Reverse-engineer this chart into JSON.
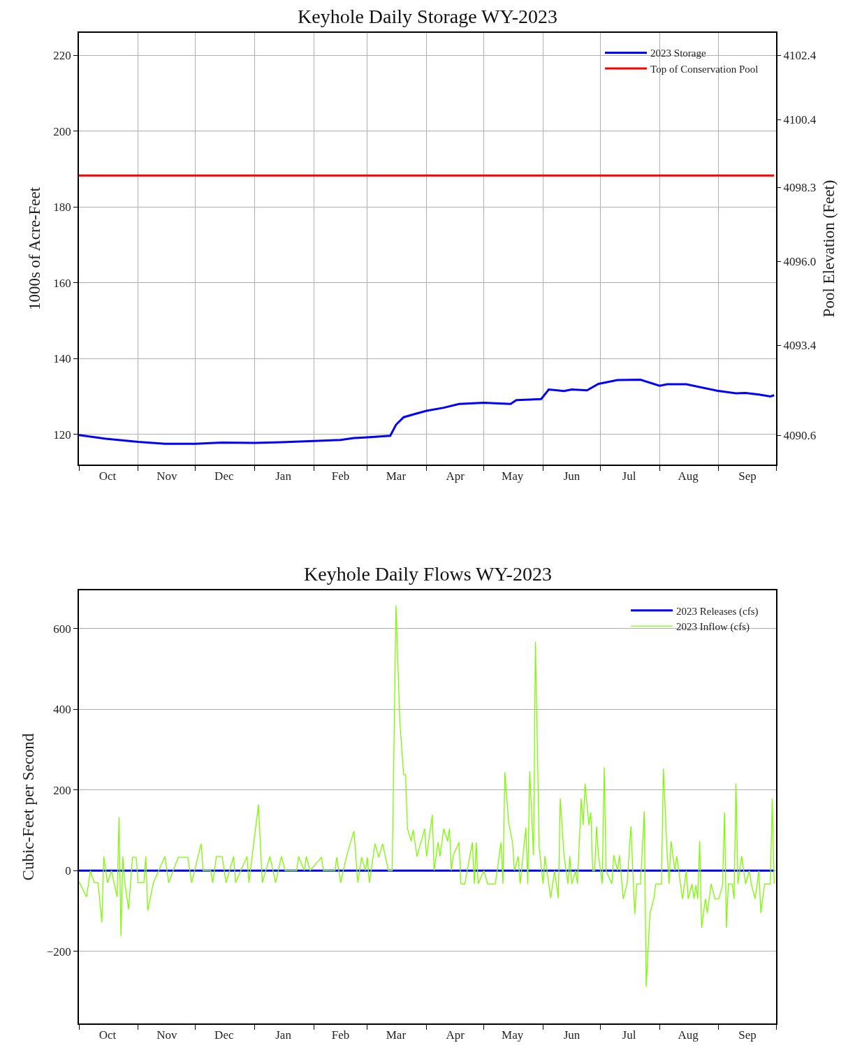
{
  "chart_data": [
    {
      "type": "line",
      "title": "Keyhole Daily Storage WY-2023",
      "ylabel": "1000s of Acre-Feet",
      "y2label": "Pool Elevation (Feet)",
      "series": [
        {
          "name": "2023 Storage",
          "color": "#0000ff",
          "x": [
            "2022-10-01",
            "2022-10-15",
            "2022-11-01",
            "2022-11-15",
            "2022-12-01",
            "2022-12-15",
            "2023-01-01",
            "2023-01-15",
            "2023-02-01",
            "2023-02-15",
            "2023-02-22",
            "2023-03-01",
            "2023-03-13",
            "2023-03-16",
            "2023-03-20",
            "2023-03-27",
            "2023-04-01",
            "2023-04-10",
            "2023-04-18",
            "2023-05-01",
            "2023-05-15",
            "2023-05-18",
            "2023-05-31",
            "2023-06-04",
            "2023-06-12",
            "2023-06-16",
            "2023-06-24",
            "2023-06-30",
            "2023-07-10",
            "2023-07-22",
            "2023-08-01",
            "2023-08-05",
            "2023-08-15",
            "2023-08-31",
            "2023-09-10",
            "2023-09-15",
            "2023-09-22",
            "2023-09-28",
            "2023-09-30"
          ],
          "values": [
            119.8,
            118.8,
            118.0,
            117.5,
            117.5,
            117.8,
            117.7,
            117.9,
            118.2,
            118.5,
            119.0,
            119.2,
            119.6,
            122.5,
            124.5,
            125.5,
            126.2,
            127.0,
            128.0,
            128.3,
            128.0,
            129.0,
            129.3,
            131.8,
            131.4,
            131.8,
            131.6,
            133.3,
            134.3,
            134.4,
            132.8,
            133.2,
            133.2,
            131.5,
            130.8,
            130.9,
            130.5,
            130.0,
            130.3
          ]
        },
        {
          "name": "Top of Conservation Pool",
          "color": "#ff0000",
          "x": [
            "2022-10-01",
            "2023-09-30"
          ],
          "values": [
            188.3,
            188.3
          ]
        }
      ],
      "xlim": [
        "2022-10-01",
        "2023-10-01"
      ],
      "xticks": [
        {
          "value": "2022-10-01",
          "label": null
        },
        {
          "value": "2022-10-16",
          "label": "Oct"
        },
        {
          "value": "2022-11-01",
          "label": null
        },
        {
          "value": "2022-11-16",
          "label": "Nov"
        },
        {
          "value": "2022-12-01",
          "label": null
        },
        {
          "value": "2022-12-16",
          "label": "Dec"
        },
        {
          "value": "2023-01-01",
          "label": null
        },
        {
          "value": "2023-01-16",
          "label": "Jan"
        },
        {
          "value": "2023-02-01",
          "label": null
        },
        {
          "value": "2023-02-15",
          "label": "Feb"
        },
        {
          "value": "2023-03-01",
          "label": null
        },
        {
          "value": "2023-03-16",
          "label": "Mar"
        },
        {
          "value": "2023-04-01",
          "label": null
        },
        {
          "value": "2023-04-16",
          "label": "Apr"
        },
        {
          "value": "2023-05-01",
          "label": null
        },
        {
          "value": "2023-05-16",
          "label": "May"
        },
        {
          "value": "2023-06-01",
          "label": null
        },
        {
          "value": "2023-06-16",
          "label": "Jun"
        },
        {
          "value": "2023-07-01",
          "label": null
        },
        {
          "value": "2023-07-16",
          "label": "Jul"
        },
        {
          "value": "2023-08-01",
          "label": null
        },
        {
          "value": "2023-08-16",
          "label": "Aug"
        },
        {
          "value": "2023-09-01",
          "label": null
        },
        {
          "value": "2023-09-16",
          "label": "Sep"
        },
        {
          "value": "2023-10-01",
          "label": null
        }
      ],
      "ylim": [
        112,
        226
      ],
      "yticks": [
        120,
        140,
        160,
        180,
        200,
        220
      ],
      "y2lim": [
        4089.7,
        4103.1
      ],
      "y2ticks": [
        4090.6,
        4093.4,
        {
          "value": 4096.0,
          "label": "4096.0"
        },
        4098.3,
        4100.4,
        4102.4
      ],
      "grid": true,
      "legend": "top right",
      "line_style": "solid",
      "marker": "none"
    },
    {
      "type": "line",
      "title": "Keyhole Daily Flows WY-2023",
      "ylabel": "Cubic-Feet per Second",
      "series": [
        {
          "name": "2023 Releases (cfs)",
          "color": "#0000ff",
          "x": [
            "2022-10-01",
            "2023-09-30"
          ],
          "values": [
            0,
            0
          ]
        },
        {
          "name": "2023 Inflow (cfs)",
          "color": "#7cfc00",
          "x": [
            "2022-10-01",
            "2022-10-05",
            "2022-10-07",
            "2022-10-09",
            "2022-10-11",
            "2022-10-13",
            "2022-10-14",
            "2022-10-16",
            "2022-10-18",
            "2022-10-21",
            "2022-10-22",
            "2022-10-23",
            "2022-10-24",
            "2022-10-25",
            "2022-10-27",
            "2022-10-29",
            "2022-10-31",
            "2022-11-01",
            "2022-11-04",
            "2022-11-05",
            "2022-11-06",
            "2022-11-09",
            "2022-11-15",
            "2022-11-17",
            "2022-11-22",
            "2022-11-27",
            "2022-11-29",
            "2022-12-04",
            "2022-12-05",
            "2022-12-09",
            "2022-12-10",
            "2022-12-12",
            "2022-12-15",
            "2022-12-17",
            "2022-12-21",
            "2022-12-22",
            "2022-12-28",
            "2022-12-29",
            "2023-01-03",
            "2023-01-05",
            "2023-01-09",
            "2023-01-12",
            "2023-01-15",
            "2023-01-17",
            "2023-01-23",
            "2023-01-24",
            "2023-01-27",
            "2023-01-28",
            "2023-01-30",
            "2023-02-05",
            "2023-02-06",
            "2023-02-12",
            "2023-02-13",
            "2023-02-15",
            "2023-02-18",
            "2023-02-20",
            "2023-02-22",
            "2023-02-24",
            "2023-02-26",
            "2023-02-28",
            "2023-03-01",
            "2023-03-02",
            "2023-03-04",
            "2023-03-05",
            "2023-03-07",
            "2023-03-09",
            "2023-03-12",
            "2023-03-14",
            "2023-03-16",
            "2023-03-18",
            "2023-03-20",
            "2023-03-21",
            "2023-03-22",
            "2023-03-24",
            "2023-03-25",
            "2023-03-27",
            "2023-03-29",
            "2023-03-31",
            "2023-04-01",
            "2023-04-04",
            "2023-04-05",
            "2023-04-07",
            "2023-04-08",
            "2023-04-10",
            "2023-04-12",
            "2023-04-13",
            "2023-04-14",
            "2023-04-15",
            "2023-04-18",
            "2023-04-19",
            "2023-04-21",
            "2023-04-25",
            "2023-04-26",
            "2023-04-27",
            "2023-04-28",
            "2023-05-01",
            "2023-05-03",
            "2023-05-07",
            "2023-05-10",
            "2023-05-11",
            "2023-05-12",
            "2023-05-14",
            "2023-05-16",
            "2023-05-17",
            "2023-05-19",
            "2023-05-20",
            "2023-05-23",
            "2023-05-24",
            "2023-05-25",
            "2023-05-27",
            "2023-05-28",
            "2023-05-30",
            "2023-06-01",
            "2023-06-02",
            "2023-06-05",
            "2023-06-07",
            "2023-06-09",
            "2023-06-10",
            "2023-06-12",
            "2023-06-14",
            "2023-06-15",
            "2023-06-16",
            "2023-06-18",
            "2023-06-19",
            "2023-06-21",
            "2023-06-22",
            "2023-06-23",
            "2023-06-25",
            "2023-06-26",
            "2023-06-27",
            "2023-06-28",
            "2023-06-29",
            "2023-06-30",
            "2023-07-02",
            "2023-07-03",
            "2023-07-04",
            "2023-07-07",
            "2023-07-08",
            "2023-07-10",
            "2023-07-11",
            "2023-07-13",
            "2023-07-15",
            "2023-07-17",
            "2023-07-19",
            "2023-07-20",
            "2023-07-22",
            "2023-07-24",
            "2023-07-25",
            "2023-07-27",
            "2023-07-29",
            "2023-07-30",
            "2023-08-02",
            "2023-08-03",
            "2023-08-05",
            "2023-08-06",
            "2023-08-07",
            "2023-08-09",
            "2023-08-10",
            "2023-08-13",
            "2023-08-15",
            "2023-08-16",
            "2023-08-18",
            "2023-08-19",
            "2023-08-20",
            "2023-08-21",
            "2023-08-22",
            "2023-08-23",
            "2023-08-25",
            "2023-08-26",
            "2023-08-28",
            "2023-08-30",
            "2023-09-01",
            "2023-09-03",
            "2023-09-04",
            "2023-09-05",
            "2023-09-06",
            "2023-09-08",
            "2023-09-09",
            "2023-09-10",
            "2023-09-11",
            "2023-09-13",
            "2023-09-15",
            "2023-09-17",
            "2023-09-18",
            "2023-09-20",
            "2023-09-22",
            "2023-09-23",
            "2023-09-25",
            "2023-09-28",
            "2023-09-29",
            "2023-09-30"
          ],
          "values": [
            -27,
            -65,
            0,
            -30,
            -30,
            -128,
            35,
            -30,
            0,
            -65,
            133,
            -162,
            35,
            -30,
            -96,
            33,
            33,
            -30,
            -30,
            35,
            -99,
            -30,
            35,
            -30,
            33,
            33,
            -30,
            67,
            0,
            0,
            -30,
            35,
            35,
            -30,
            35,
            -30,
            35,
            -30,
            164,
            -30,
            35,
            -30,
            35,
            0,
            0,
            35,
            0,
            35,
            0,
            33,
            0,
            0,
            33,
            -30,
            33,
            67,
            98,
            -30,
            33,
            0,
            33,
            -30,
            33,
            67,
            33,
            67,
            0,
            0,
            658,
            370,
            238,
            238,
            104,
            73,
            101,
            35,
            70,
            104,
            35,
            138,
            0,
            70,
            35,
            104,
            73,
            104,
            0,
            38,
            70,
            -33,
            -33,
            70,
            -33,
            70,
            -33,
            0,
            -33,
            -33,
            70,
            -33,
            244,
            118,
            70,
            0,
            35,
            -33,
            107,
            -33,
            247,
            38,
            567,
            56,
            -33,
            36,
            -68,
            0,
            -68,
            179,
            36,
            -33,
            36,
            -33,
            0,
            -33,
            179,
            113,
            216,
            113,
            144,
            0,
            0,
            110,
            38,
            -33,
            256,
            0,
            -33,
            38,
            0,
            38,
            -70,
            -33,
            110,
            -108,
            -33,
            -33,
            147,
            -288,
            -105,
            -70,
            -33,
            -33,
            253,
            38,
            -33,
            73,
            0,
            36,
            -70,
            0,
            -70,
            -33,
            -70,
            -36,
            -70,
            73,
            -142,
            -70,
            -105,
            -33,
            -70,
            -70,
            -36,
            144,
            -142,
            -33,
            -33,
            -70,
            216,
            -33,
            36,
            -33,
            0,
            -33,
            -70,
            0,
            -105,
            -33,
            -33,
            179,
            -33
          ]
        }
      ],
      "xlim": [
        "2022-10-01",
        "2023-10-01"
      ],
      "xticks": [
        {
          "value": "2022-10-01",
          "label": null
        },
        {
          "value": "2022-10-16",
          "label": "Oct"
        },
        {
          "value": "2022-11-01",
          "label": null
        },
        {
          "value": "2022-11-16",
          "label": "Nov"
        },
        {
          "value": "2022-12-01",
          "label": null
        },
        {
          "value": "2022-12-16",
          "label": "Dec"
        },
        {
          "value": "2023-01-01",
          "label": null
        },
        {
          "value": "2023-01-16",
          "label": "Jan"
        },
        {
          "value": "2023-02-01",
          "label": null
        },
        {
          "value": "2023-02-15",
          "label": "Feb"
        },
        {
          "value": "2023-03-01",
          "label": null
        },
        {
          "value": "2023-03-16",
          "label": "Mar"
        },
        {
          "value": "2023-04-01",
          "label": null
        },
        {
          "value": "2023-04-16",
          "label": "Apr"
        },
        {
          "value": "2023-05-01",
          "label": null
        },
        {
          "value": "2023-05-16",
          "label": "May"
        },
        {
          "value": "2023-06-01",
          "label": null
        },
        {
          "value": "2023-06-16",
          "label": "Jun"
        },
        {
          "value": "2023-07-01",
          "label": null
        },
        {
          "value": "2023-07-16",
          "label": "Jul"
        },
        {
          "value": "2023-08-01",
          "label": null
        },
        {
          "value": "2023-08-16",
          "label": "Aug"
        },
        {
          "value": "2023-09-01",
          "label": null
        },
        {
          "value": "2023-09-16",
          "label": "Sep"
        },
        {
          "value": "2023-10-01",
          "label": null
        }
      ],
      "ylim": [
        -379,
        695
      ],
      "yticks": [
        {
          "value": -200,
          "label": "−200"
        },
        0,
        200,
        400,
        600
      ],
      "grid": "y",
      "legend": "top right",
      "line_style": "solid",
      "marker": "none"
    }
  ]
}
